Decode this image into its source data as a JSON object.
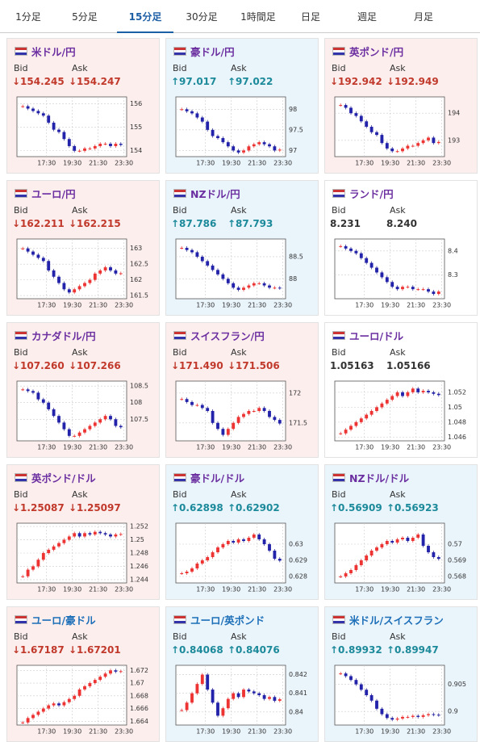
{
  "tabs": [
    "1分足",
    "5分足",
    "15分足",
    "30分足",
    "1時間足",
    "日足",
    "週足",
    "月足"
  ],
  "active_tab": 2,
  "bid_label": "Bid",
  "ask_label": "Ask",
  "xticks": [
    "17:30",
    "19:30",
    "21:30",
    "23:30"
  ],
  "cards": [
    {
      "name": "米ドル/円",
      "direction": "down",
      "bid": "↓154.245",
      "ask": "↓154.247",
      "ylim": [
        153.75,
        156.3
      ],
      "yticks": [
        154,
        155,
        156
      ],
      "closes": [
        155.9,
        155.8,
        155.7,
        155.6,
        155.5,
        155.2,
        154.9,
        154.8,
        154.5,
        154.2,
        154.0,
        154.0,
        154.1,
        154.1,
        154.2,
        154.3,
        154.3,
        154.2,
        154.3,
        154.25
      ]
    },
    {
      "name": "豪ドル/円",
      "direction": "up",
      "bid": "↑97.017",
      "ask": "↑97.022",
      "ylim": [
        96.85,
        98.3
      ],
      "yticks": [
        97,
        97.5,
        98
      ],
      "closes": [
        98.0,
        97.95,
        97.9,
        97.8,
        97.7,
        97.5,
        97.35,
        97.3,
        97.2,
        97.1,
        97.0,
        96.95,
        97.0,
        97.1,
        97.15,
        97.2,
        97.15,
        97.1,
        97.0,
        97.02
      ]
    },
    {
      "name": "英ポンド/円",
      "direction": "down",
      "bid": "↓192.942",
      "ask": "↓192.949",
      "ylim": [
        192.4,
        194.6
      ],
      "yticks": [
        193,
        194
      ],
      "closes": [
        194.3,
        194.2,
        194.0,
        193.9,
        193.7,
        193.5,
        193.3,
        193.2,
        192.9,
        192.7,
        192.6,
        192.6,
        192.7,
        192.8,
        192.8,
        192.9,
        193.0,
        193.1,
        192.9,
        192.94
      ]
    },
    {
      "name": "ユーロ/円",
      "direction": "down",
      "bid": "↓162.211",
      "ask": "↓162.215",
      "ylim": [
        161.4,
        163.3
      ],
      "yticks": [
        161.5,
        162,
        162.5,
        163
      ],
      "closes": [
        163.0,
        162.9,
        162.8,
        162.7,
        162.6,
        162.3,
        162.1,
        161.9,
        161.7,
        161.6,
        161.7,
        161.8,
        161.9,
        162.0,
        162.2,
        162.3,
        162.4,
        162.3,
        162.2,
        162.21
      ]
    },
    {
      "name": "NZドル/円",
      "direction": "up",
      "bid": "↑87.786",
      "ask": "↑87.793",
      "ylim": [
        87.55,
        88.9
      ],
      "yticks": [
        88,
        88.5
      ],
      "closes": [
        88.7,
        88.65,
        88.6,
        88.5,
        88.4,
        88.3,
        88.2,
        88.1,
        88.0,
        87.9,
        87.8,
        87.75,
        87.8,
        87.85,
        87.9,
        87.9,
        87.85,
        87.8,
        87.8,
        87.79
      ]
    },
    {
      "name": "ランド/円",
      "direction": "none",
      "bid": "8.231",
      "ask": "8.240",
      "ylim": [
        8.2,
        8.45
      ],
      "yticks": [
        8.3,
        8.4
      ],
      "closes": [
        8.42,
        8.41,
        8.4,
        8.39,
        8.37,
        8.35,
        8.33,
        8.31,
        8.29,
        8.27,
        8.25,
        8.24,
        8.25,
        8.25,
        8.24,
        8.24,
        8.24,
        8.23,
        8.22,
        8.23
      ]
    },
    {
      "name": "カナダドル/円",
      "direction": "down",
      "bid": "↓107.260",
      "ask": "↓107.266",
      "ylim": [
        106.85,
        108.65
      ],
      "yticks": [
        107.5,
        108,
        108.5
      ],
      "closes": [
        108.4,
        108.35,
        108.3,
        108.1,
        108.0,
        107.8,
        107.6,
        107.4,
        107.2,
        107.0,
        107.0,
        107.1,
        107.2,
        107.3,
        107.4,
        107.5,
        107.6,
        107.5,
        107.3,
        107.26
      ]
    },
    {
      "name": "スイスフラン/円",
      "direction": "down",
      "bid": "↓171.490",
      "ask": "↓171.506",
      "ylim": [
        171.2,
        172.2
      ],
      "yticks": [
        171.5,
        172
      ],
      "closes": [
        171.9,
        171.85,
        171.8,
        171.8,
        171.75,
        171.7,
        171.5,
        171.4,
        171.3,
        171.4,
        171.5,
        171.6,
        171.65,
        171.7,
        171.7,
        171.75,
        171.7,
        171.6,
        171.55,
        171.49
      ]
    },
    {
      "name": "ユーロ/ドル",
      "direction": "none",
      "bid": "1.05163",
      "ask": "1.05166",
      "ylim": [
        1.0455,
        1.0535
      ],
      "yticks": [
        1.046,
        1.048,
        1.05,
        1.052
      ],
      "closes": [
        1.0465,
        1.047,
        1.0475,
        1.048,
        1.0485,
        1.049,
        1.0495,
        1.05,
        1.0505,
        1.051,
        1.0515,
        1.052,
        1.0515,
        1.052,
        1.0525,
        1.052,
        1.0522,
        1.052,
        1.0518,
        1.05163
      ]
    },
    {
      "name": "英ポンド/ドル",
      "direction": "down",
      "bid": "↓1.25087",
      "ask": "↓1.25097",
      "ylim": [
        1.2435,
        1.2525
      ],
      "yticks": [
        1.244,
        1.246,
        1.248,
        1.25,
        1.252
      ],
      "closes": [
        1.2445,
        1.2455,
        1.246,
        1.247,
        1.248,
        1.2485,
        1.249,
        1.2495,
        1.25,
        1.2505,
        1.251,
        1.2505,
        1.251,
        1.2508,
        1.2512,
        1.251,
        1.2508,
        1.2505,
        1.2508,
        1.25087
      ]
    },
    {
      "name": "豪ドル/ドル",
      "direction": "up",
      "bid": "↑0.62898",
      "ask": "↑0.62902",
      "ylim": [
        0.6276,
        0.6313
      ],
      "yticks": [
        0.628,
        0.629,
        0.63
      ],
      "closes": [
        0.6282,
        0.6283,
        0.6285,
        0.6288,
        0.629,
        0.6292,
        0.6295,
        0.6298,
        0.63,
        0.6302,
        0.6301,
        0.6303,
        0.6302,
        0.6304,
        0.6306,
        0.6303,
        0.63,
        0.6296,
        0.6291,
        0.62898
      ]
    },
    {
      "name": "NZドル/ドル",
      "direction": "up",
      "bid": "↑0.56909",
      "ask": "↑0.56923",
      "ylim": [
        0.5676,
        0.5713
      ],
      "yticks": [
        0.568,
        0.569,
        0.57
      ],
      "closes": [
        0.568,
        0.5682,
        0.5684,
        0.5687,
        0.569,
        0.5693,
        0.5696,
        0.5698,
        0.57,
        0.5702,
        0.5701,
        0.5703,
        0.5704,
        0.5702,
        0.5704,
        0.5706,
        0.5699,
        0.5695,
        0.5692,
        0.56909
      ]
    },
    {
      "name": "ユーロ/豪ドル",
      "direction": "down",
      "bid": "↓1.67187",
      "ask": "↓1.67201",
      "ylim": [
        1.6634,
        1.6728
      ],
      "yticks": [
        1.664,
        1.666,
        1.668,
        1.67,
        1.672
      ],
      "closes": [
        1.6638,
        1.6645,
        1.665,
        1.6655,
        1.666,
        1.6665,
        1.6668,
        1.6665,
        1.667,
        1.6675,
        1.668,
        1.669,
        1.6695,
        1.67,
        1.6705,
        1.671,
        1.6715,
        1.672,
        1.6718,
        1.67187
      ]
    },
    {
      "name": "ユーロ/英ポンド",
      "direction": "up",
      "bid": "↑0.84068",
      "ask": "↑0.84076",
      "ylim": [
        0.8393,
        0.8425
      ],
      "yticks": [
        0.84,
        0.841,
        0.842
      ],
      "closes": [
        0.8401,
        0.8405,
        0.841,
        0.8415,
        0.842,
        0.8412,
        0.8405,
        0.8398,
        0.8402,
        0.8407,
        0.841,
        0.8408,
        0.8412,
        0.8411,
        0.841,
        0.8409,
        0.8407,
        0.8408,
        0.8406,
        0.84068
      ]
    },
    {
      "name": "米ドル/スイスフラン",
      "direction": "up",
      "bid": "↑0.89932",
      "ask": "↑0.89947",
      "ylim": [
        0.8975,
        0.9085
      ],
      "yticks": [
        0.9,
        0.905
      ],
      "closes": [
        0.907,
        0.9065,
        0.9058,
        0.905,
        0.904,
        0.903,
        0.902,
        0.9005,
        0.8995,
        0.8988,
        0.8985,
        0.8987,
        0.899,
        0.899,
        0.8992,
        0.899,
        0.8993,
        0.8995,
        0.8994,
        0.89932
      ]
    }
  ]
}
